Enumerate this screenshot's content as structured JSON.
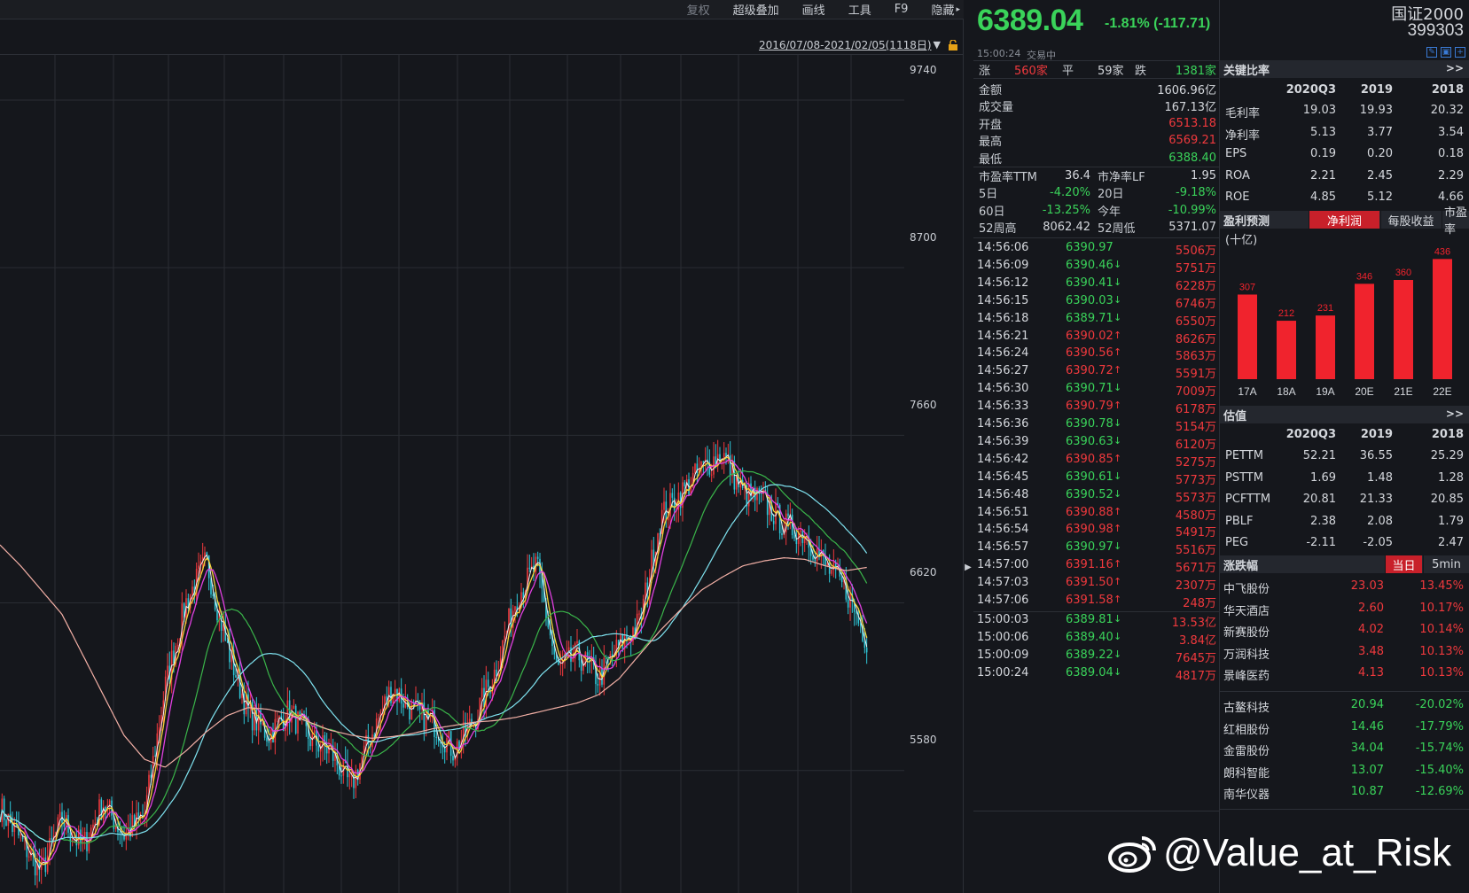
{
  "toolbar": {
    "items": [
      "复权",
      "超级叠加",
      "画线",
      "工具",
      "F9",
      "隐藏"
    ]
  },
  "chart": {
    "date_range": "2016/07/08-2021/02/05(1118日)",
    "y_ticks": [
      "9740",
      "8700",
      "7660",
      "6620",
      "5580"
    ]
  },
  "chart_data": {
    "type": "line",
    "title": "",
    "series": [
      {
        "name": "",
        "values": [
          5350,
          5150,
          4950,
          5280,
          5100,
          5380,
          5180,
          5300,
          6100,
          6620,
          6880,
          6350,
          5950,
          5800,
          5950,
          5780,
          5700,
          5480,
          5800,
          6100,
          5950,
          5880,
          5700,
          5900,
          6200,
          6650,
          6850,
          6200,
          6300,
          6150,
          6350,
          6500,
          7150,
          7300,
          7450,
          7550,
          7300,
          7250,
          7100,
          7050,
          6850,
          6700,
          6389
        ]
      },
      {
        "name": "",
        "values": [
          6980,
          6850,
          6700,
          6550,
          6300,
          6050,
          5800,
          5650,
          5600,
          5700,
          5820,
          5920,
          5970,
          5960,
          5930,
          5880,
          5830,
          5800,
          5780,
          5790,
          5810,
          5840,
          5860,
          5880,
          5890,
          5910,
          5940,
          5970,
          6000,
          6050,
          6150,
          6300,
          6450,
          6580,
          6700,
          6780,
          6850,
          6880,
          6900,
          6890,
          6850,
          6820,
          6840
        ]
      }
    ],
    "ylim": [
      4820,
      10020
    ]
  },
  "quote": {
    "price": "6389.04",
    "change": "-1.81% (-117.71)",
    "time": "15:00:24",
    "status": "交易中",
    "breadth": {
      "up_label": "涨",
      "up": "560家",
      "flat_label": "平",
      "flat": "59家",
      "down_label": "跌",
      "down": "1381家"
    },
    "stats": [
      {
        "label": "金额",
        "value": "1606.96亿",
        "color": "white"
      },
      {
        "label": "成交量",
        "value": "167.13亿",
        "color": "white"
      },
      {
        "label": "开盘",
        "value": "6513.18",
        "color": "red"
      },
      {
        "label": "最高",
        "value": "6569.21",
        "color": "red"
      },
      {
        "label": "最低",
        "value": "6388.40",
        "color": "green"
      }
    ],
    "pairs": [
      {
        "l1": "市盈率TTM",
        "v1": "36.4",
        "c1": "white",
        "l2": "市净率LF",
        "v2": "1.95",
        "c2": "white"
      },
      {
        "l1": "5日",
        "v1": "-4.20%",
        "c1": "green",
        "l2": "20日",
        "v2": "-9.18%",
        "c2": "green"
      },
      {
        "l1": "60日",
        "v1": "-13.25%",
        "c1": "green",
        "l2": "今年",
        "v2": "-10.99%",
        "c2": "green"
      },
      {
        "l1": "52周高",
        "v1": "8062.42",
        "c1": "white",
        "l2": "52周低",
        "v2": "5371.07",
        "c2": "white"
      }
    ],
    "ticks": [
      {
        "time": "14:56:06",
        "price": "6390.97",
        "dir": "",
        "vol": "5506万"
      },
      {
        "time": "14:56:09",
        "price": "6390.46",
        "dir": "down",
        "vol": "5751万"
      },
      {
        "time": "14:56:12",
        "price": "6390.41",
        "dir": "down",
        "vol": "6228万"
      },
      {
        "time": "14:56:15",
        "price": "6390.03",
        "dir": "down",
        "vol": "6746万"
      },
      {
        "time": "14:56:18",
        "price": "6389.71",
        "dir": "down",
        "vol": "6550万"
      },
      {
        "time": "14:56:21",
        "price": "6390.02",
        "dir": "up",
        "vol": "8626万"
      },
      {
        "time": "14:56:24",
        "price": "6390.56",
        "dir": "up",
        "vol": "5863万"
      },
      {
        "time": "14:56:27",
        "price": "6390.72",
        "dir": "up",
        "vol": "5591万"
      },
      {
        "time": "14:56:30",
        "price": "6390.71",
        "dir": "down",
        "vol": "7009万"
      },
      {
        "time": "14:56:33",
        "price": "6390.79",
        "dir": "up",
        "vol": "6178万"
      },
      {
        "time": "14:56:36",
        "price": "6390.78",
        "dir": "down",
        "vol": "5154万"
      },
      {
        "time": "14:56:39",
        "price": "6390.63",
        "dir": "down",
        "vol": "6120万"
      },
      {
        "time": "14:56:42",
        "price": "6390.85",
        "dir": "up",
        "vol": "5275万"
      },
      {
        "time": "14:56:45",
        "price": "6390.61",
        "dir": "down",
        "vol": "5773万"
      },
      {
        "time": "14:56:48",
        "price": "6390.52",
        "dir": "down",
        "vol": "5573万"
      },
      {
        "time": "14:56:51",
        "price": "6390.88",
        "dir": "up",
        "vol": "4580万"
      },
      {
        "time": "14:56:54",
        "price": "6390.98",
        "dir": "up",
        "vol": "5491万"
      },
      {
        "time": "14:56:57",
        "price": "6390.97",
        "dir": "down",
        "vol": "5516万"
      },
      {
        "time": "14:57:00",
        "price": "6391.16",
        "dir": "up",
        "vol": "5671万"
      },
      {
        "time": "14:57:03",
        "price": "6391.50",
        "dir": "up",
        "vol": "2307万"
      },
      {
        "time": "14:57:06",
        "price": "6391.58",
        "dir": "up",
        "vol": "248万"
      },
      {
        "time": "15:00:03",
        "price": "6389.81",
        "dir": "down",
        "vol": "13.53亿"
      },
      {
        "time": "15:00:06",
        "price": "6389.40",
        "dir": "down",
        "vol": "3.84亿"
      },
      {
        "time": "15:00:09",
        "price": "6389.22",
        "dir": "down",
        "vol": "7645万"
      },
      {
        "time": "15:00:24",
        "price": "6389.04",
        "dir": "down",
        "vol": "4817万"
      }
    ]
  },
  "info": {
    "index_name": "国证2000",
    "index_code": "399303",
    "ratios": {
      "title": "关键比率",
      "more": ">>",
      "headers": [
        "2020Q3",
        "2019",
        "2018"
      ],
      "rows": [
        {
          "name": "毛利率",
          "v": [
            "19.03",
            "19.93",
            "20.32"
          ]
        },
        {
          "name": "净利率",
          "v": [
            "5.13",
            "3.77",
            "3.54"
          ]
        },
        {
          "name": "EPS",
          "v": [
            "0.19",
            "0.20",
            "0.18"
          ]
        },
        {
          "name": "ROA",
          "v": [
            "2.21",
            "2.45",
            "2.29"
          ]
        },
        {
          "name": "ROE",
          "v": [
            "4.85",
            "5.12",
            "4.66"
          ]
        }
      ]
    },
    "forecast": {
      "title": "盈利预测",
      "tabs": [
        "净利润",
        "每股收益",
        "市盈率"
      ],
      "unit": "(十亿)"
    },
    "valuation": {
      "title": "估值",
      "more": ">>",
      "headers": [
        "2020Q3",
        "2019",
        "2018"
      ],
      "rows": [
        {
          "name": "PETTM",
          "v": [
            "52.21",
            "36.55",
            "25.29"
          ]
        },
        {
          "name": "PSTTM",
          "v": [
            "1.69",
            "1.48",
            "1.28"
          ]
        },
        {
          "name": "PCFTTM",
          "v": [
            "20.81",
            "21.33",
            "20.85"
          ]
        },
        {
          "name": "PBLF",
          "v": [
            "2.38",
            "2.08",
            "1.79"
          ]
        },
        {
          "name": "PEG",
          "v": [
            "-2.11",
            "-2.05",
            "2.47"
          ]
        }
      ]
    },
    "movers": {
      "title": "涨跌幅",
      "tabs": [
        "当日",
        "5min"
      ],
      "gainers": [
        {
          "name": "中飞股份",
          "price": "23.03",
          "pct": "13.45%"
        },
        {
          "name": "华天酒店",
          "price": "2.60",
          "pct": "10.17%"
        },
        {
          "name": "新赛股份",
          "price": "4.02",
          "pct": "10.14%"
        },
        {
          "name": "万润科技",
          "price": "3.48",
          "pct": "10.13%"
        },
        {
          "name": "景峰医药",
          "price": "4.13",
          "pct": "10.13%"
        }
      ],
      "losers": [
        {
          "name": "古鳌科技",
          "price": "20.94",
          "pct": "-20.02%"
        },
        {
          "name": "红相股份",
          "price": "14.46",
          "pct": "-17.79%"
        },
        {
          "name": "金雷股份",
          "price": "34.04",
          "pct": "-15.74%"
        },
        {
          "name": "朗科智能",
          "price": "13.07",
          "pct": "-15.40%"
        },
        {
          "name": "南华仪器",
          "price": "10.87",
          "pct": "-12.69%"
        }
      ]
    },
    "watermark": "@Value_at_Risk"
  },
  "forecast_chart": {
    "type": "bar",
    "categories": [
      "17A",
      "18A",
      "19A",
      "20E",
      "21E",
      "22E"
    ],
    "values": [
      307,
      212,
      231,
      346,
      360,
      436
    ],
    "color": "#f0232d"
  }
}
